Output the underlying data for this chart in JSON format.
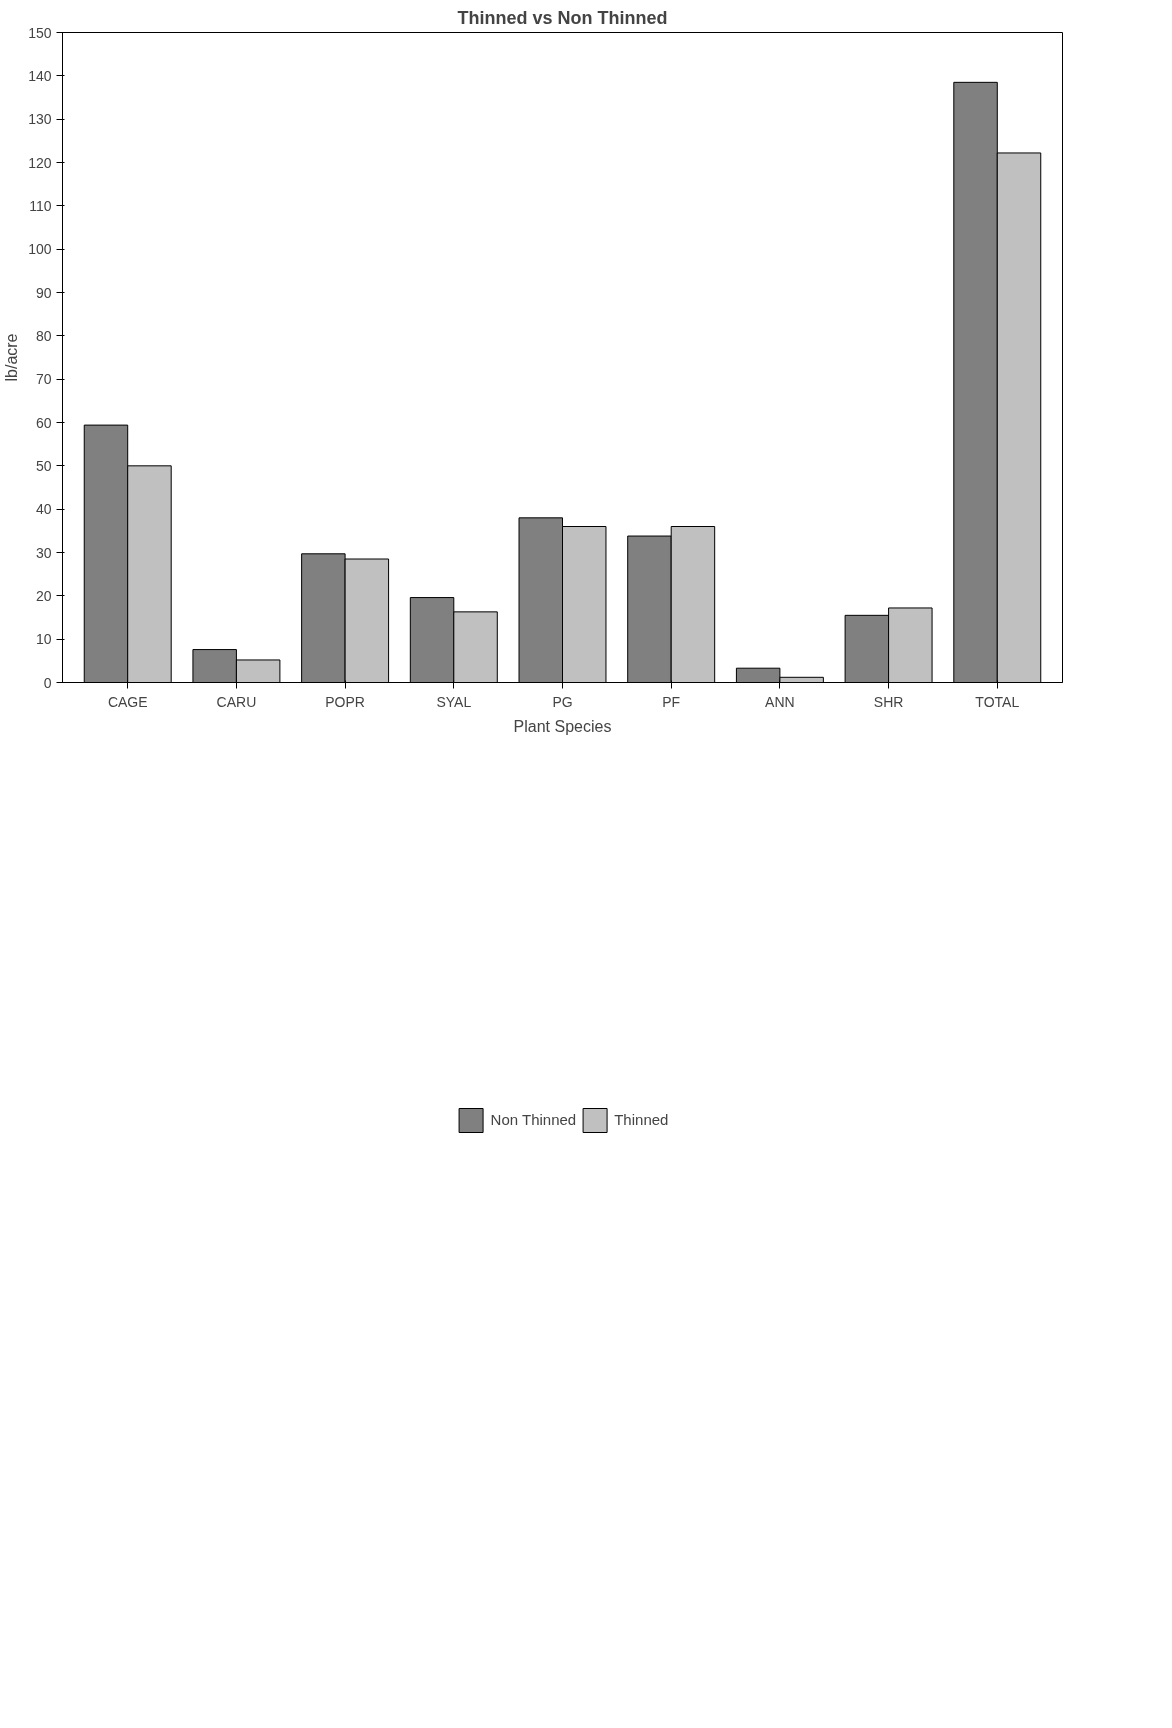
{
  "chart_data": {
    "type": "bar",
    "title": "Thinned vs Non Thinned",
    "xlabel": "Plant Species",
    "ylabel": "lb/acre",
    "categories": [
      "CAGE",
      "CARU",
      "POPR",
      "SYAL",
      "PG",
      "PF",
      "ANN",
      "SHR",
      "TOTAL"
    ],
    "series": [
      {
        "name": "Non Thinned",
        "color": "#808080",
        "values": [
          59.4,
          7.6,
          29.7,
          19.6,
          38,
          33.8,
          3.3,
          15.5,
          138.5
        ]
      },
      {
        "name": "Thinned",
        "color": "#c0c0c0",
        "values": [
          50,
          5.2,
          28.5,
          16.3,
          36,
          36,
          1.2,
          17.2,
          122.2
        ]
      }
    ],
    "ylim": [
      0,
      150
    ],
    "yticks": [
      0,
      10,
      20,
      30,
      40,
      50,
      60,
      70,
      80,
      90,
      100,
      110,
      120,
      130,
      140,
      150
    ],
    "grid": false,
    "legend": "bottom"
  }
}
